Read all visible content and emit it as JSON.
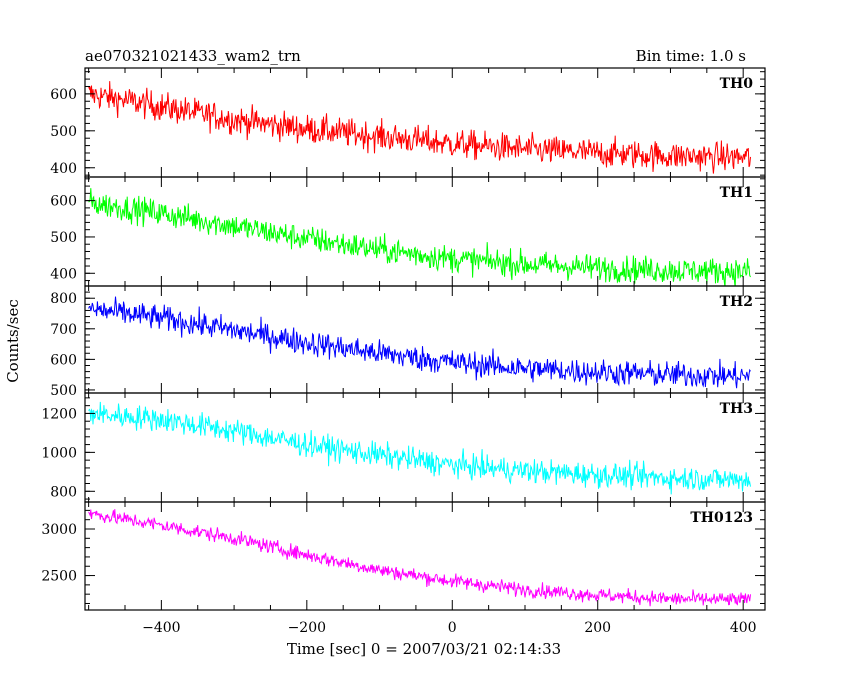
{
  "header": {
    "title": "ae070321021433_wam2_trn",
    "bin_time": "Bin time: 1.0 s"
  },
  "axes": {
    "xlabel": "Time [sec] 0 = 2007/03/21 02:14:33",
    "ylabel": "Counts/sec"
  },
  "chart_data": {
    "type": "line",
    "title": "ae070321021433_wam2_trn",
    "xlabel": "Time [sec] 0 = 2007/03/21 02:14:33",
    "ylabel": "Counts/sec",
    "xlim": [
      -505,
      430
    ],
    "x_ticks": [
      -400,
      -200,
      0,
      200,
      400
    ],
    "x_tick_labels": [
      "−400",
      "−200",
      "0",
      "200",
      "400"
    ],
    "sample_interval_s": 1.0,
    "x_range": [
      -500,
      410
    ],
    "panels": [
      {
        "name": "TH0",
        "color": "#ff0000",
        "ylim": [
          375,
          670
        ],
        "y_ticks": [
          400,
          500,
          600
        ],
        "trend": {
          "x": [
            -500,
            -400,
            -300,
            -200,
            -100,
            0,
            100,
            200,
            300,
            400
          ],
          "y": [
            600,
            565,
            530,
            505,
            485,
            465,
            450,
            440,
            432,
            428
          ]
        },
        "noise_amplitude": 28
      },
      {
        "name": "TH1",
        "color": "#00ff00",
        "ylim": [
          365,
          665
        ],
        "y_ticks": [
          400,
          500,
          600
        ],
        "trend": {
          "x": [
            -500,
            -400,
            -300,
            -200,
            -100,
            0,
            100,
            200,
            300,
            400
          ],
          "y": [
            595,
            565,
            530,
            495,
            465,
            440,
            425,
            415,
            408,
            405
          ]
        },
        "noise_amplitude": 26
      },
      {
        "name": "TH2",
        "color": "#0000ff",
        "ylim": [
          490,
          840
        ],
        "y_ticks": [
          500,
          600,
          700,
          800
        ],
        "trend": {
          "x": [
            -500,
            -400,
            -300,
            -200,
            -100,
            0,
            100,
            200,
            300,
            400
          ],
          "y": [
            765,
            735,
            695,
            655,
            620,
            590,
            570,
            558,
            550,
            545
          ]
        },
        "noise_amplitude": 30
      },
      {
        "name": "TH3",
        "color": "#00ffff",
        "ylim": [
          745,
          1305
        ],
        "y_ticks": [
          800,
          1000,
          1200
        ],
        "trend": {
          "x": [
            -500,
            -400,
            -300,
            -200,
            -100,
            0,
            100,
            200,
            300,
            400
          ],
          "y": [
            1200,
            1170,
            1110,
            1040,
            985,
            935,
            905,
            885,
            868,
            860
          ]
        },
        "noise_amplitude": 45
      },
      {
        "name": "TH0123",
        "color": "#ff00ff",
        "ylim": [
          2130,
          3290
        ],
        "y_ticks": [
          2500,
          3000
        ],
        "trend": {
          "x": [
            -500,
            -400,
            -300,
            -200,
            -100,
            0,
            100,
            200,
            300,
            400
          ],
          "y": [
            3170,
            3040,
            2900,
            2720,
            2560,
            2440,
            2350,
            2290,
            2250,
            2240
          ]
        },
        "noise_amplitude": 55
      }
    ],
    "y_tick_labels": [
      [
        "400",
        "500",
        "600"
      ],
      [
        "400",
        "500",
        "600"
      ],
      [
        "500",
        "600",
        "700",
        "800"
      ],
      [
        "800",
        "1000",
        "1200"
      ],
      [
        "2500",
        "3000"
      ]
    ]
  }
}
